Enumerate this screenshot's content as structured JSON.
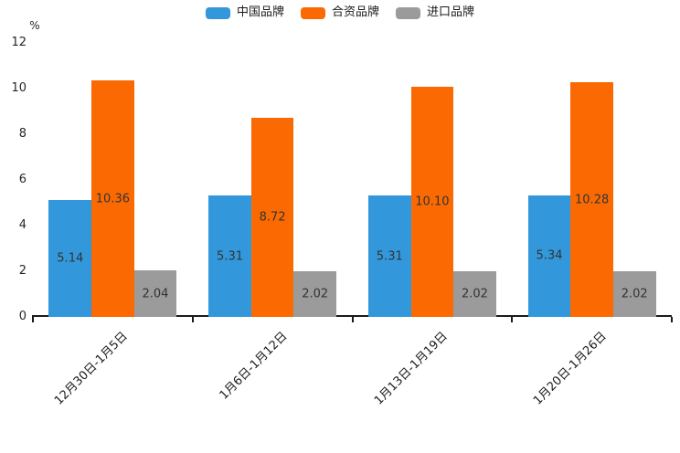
{
  "chart_data": {
    "type": "bar",
    "title": "",
    "unit_label": "%",
    "categories": [
      "12月30日-1月5日",
      "1月6日-1月12日",
      "1月13日-1月19日",
      "1月20日-1月26日"
    ],
    "series": [
      {
        "name": "中国品牌",
        "color": "#3398DB",
        "values": [
          5.14,
          5.31,
          5.31,
          5.34
        ]
      },
      {
        "name": "合资品牌",
        "color": "#FB6A02",
        "values": [
          10.36,
          8.72,
          10.1,
          10.28
        ]
      },
      {
        "name": "进口品牌",
        "color": "#9B9B9B",
        "values": [
          2.04,
          2.02,
          2.02,
          2.02
        ]
      }
    ],
    "value_label_format": "2-decimals",
    "ylim": [
      0,
      12
    ],
    "yticks": [
      0,
      2,
      4,
      6,
      8,
      10,
      12
    ],
    "grid": false,
    "legend_position": "top"
  }
}
